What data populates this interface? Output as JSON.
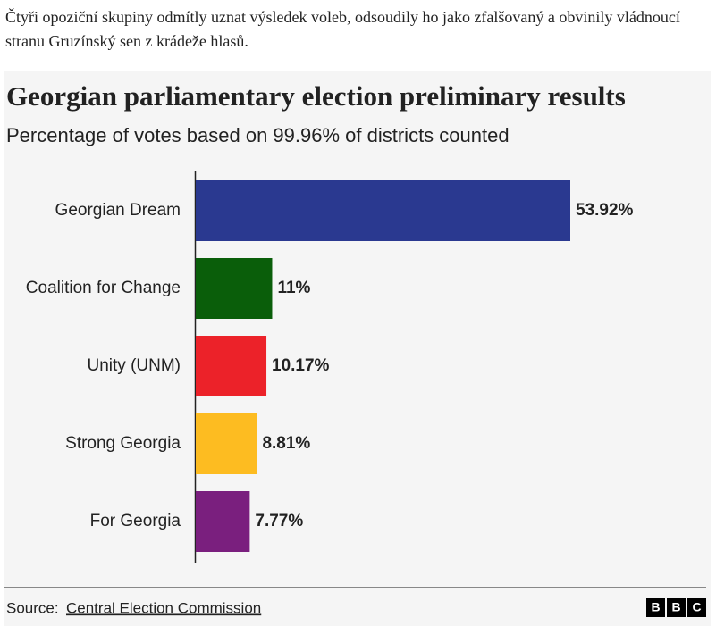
{
  "article": {
    "paragraph": "Čtyři opoziční skupiny odmítly uznat výsledek voleb, odsoudily ho jako zfalšovaný a obvinily vládnoucí stranu Gruzínský sen z krádeže hlasů."
  },
  "chart_data": {
    "type": "bar",
    "orientation": "horizontal",
    "title": "Georgian parliamentary election preliminary results",
    "subtitle": "Percentage of votes based on 99.96% of districts counted",
    "categories": [
      "Georgian Dream",
      "Coalition for Change",
      "Unity (UNM)",
      "Strong Georgia",
      "For Georgia"
    ],
    "values": [
      53.92,
      11,
      10.17,
      8.81,
      7.77
    ],
    "value_labels": [
      "53.92%",
      "11%",
      "10.17%",
      "8.81%",
      "7.77%"
    ],
    "colors": [
      "#2a3990",
      "#0a5e0a",
      "#ec2229",
      "#fdbc21",
      "#7a1f7e"
    ]
  },
  "source": {
    "label": "Source:",
    "link": "Central Election Commission"
  },
  "logo": [
    "B",
    "B",
    "C"
  ]
}
